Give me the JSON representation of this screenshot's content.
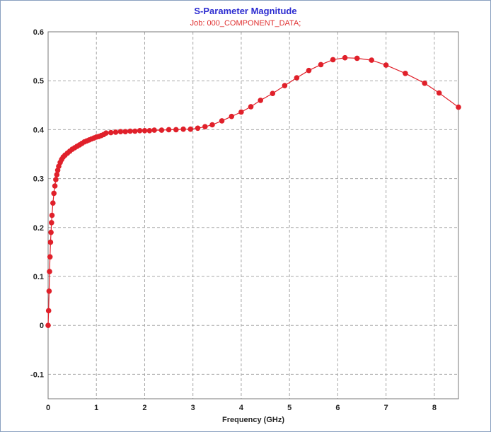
{
  "chart_data": {
    "type": "line",
    "title": "S-Parameter Magnitude",
    "subtitle": "Job:  000_COMPONENT_DATA;",
    "xlabel": "Frequency (GHz)",
    "ylabel": "",
    "xlim": [
      0,
      8.5
    ],
    "ylim": [
      -0.15,
      0.6
    ],
    "xticks": [
      0,
      1,
      2,
      3,
      4,
      5,
      6,
      7,
      8
    ],
    "yticks": [
      -0.1,
      0,
      0.1,
      0.2,
      0.3,
      0.4,
      0.5,
      0.6
    ],
    "ytick_labels": [
      "-0.1",
      "0",
      "0.1",
      "0.2",
      "0.3",
      "0.4",
      "0.5",
      "0.6"
    ],
    "grid": true,
    "series": [
      {
        "color": "#e0202a",
        "marker": "circle",
        "x": [
          0.0,
          0.01,
          0.02,
          0.03,
          0.04,
          0.05,
          0.06,
          0.07,
          0.08,
          0.1,
          0.12,
          0.14,
          0.16,
          0.18,
          0.2,
          0.22,
          0.25,
          0.28,
          0.31,
          0.35,
          0.4,
          0.45,
          0.5,
          0.55,
          0.6,
          0.65,
          0.7,
          0.75,
          0.8,
          0.85,
          0.9,
          0.95,
          1.0,
          1.05,
          1.1,
          1.15,
          1.2,
          1.3,
          1.4,
          1.5,
          1.6,
          1.7,
          1.8,
          1.9,
          2.0,
          2.1,
          2.2,
          2.35,
          2.5,
          2.65,
          2.8,
          2.95,
          3.1,
          3.25,
          3.4,
          3.6,
          3.8,
          4.0,
          4.2,
          4.4,
          4.65,
          4.9,
          5.15,
          5.4,
          5.65,
          5.9,
          6.15,
          6.4,
          6.7,
          7.0,
          7.4,
          7.8,
          8.1,
          8.5
        ],
        "y": [
          0.0,
          0.03,
          0.07,
          0.11,
          0.14,
          0.17,
          0.19,
          0.21,
          0.225,
          0.25,
          0.27,
          0.285,
          0.298,
          0.308,
          0.317,
          0.325,
          0.333,
          0.339,
          0.344,
          0.348,
          0.352,
          0.356,
          0.36,
          0.363,
          0.366,
          0.369,
          0.372,
          0.375,
          0.377,
          0.379,
          0.381,
          0.383,
          0.385,
          0.386,
          0.388,
          0.39,
          0.393,
          0.394,
          0.395,
          0.396,
          0.396,
          0.397,
          0.397,
          0.398,
          0.398,
          0.398,
          0.399,
          0.399,
          0.4,
          0.4,
          0.401,
          0.401,
          0.403,
          0.406,
          0.41,
          0.418,
          0.427,
          0.436,
          0.447,
          0.46,
          0.474,
          0.49,
          0.506,
          0.521,
          0.533,
          0.543,
          0.547,
          0.546,
          0.542,
          0.532,
          0.515,
          0.495,
          0.475,
          0.446
        ]
      }
    ]
  }
}
